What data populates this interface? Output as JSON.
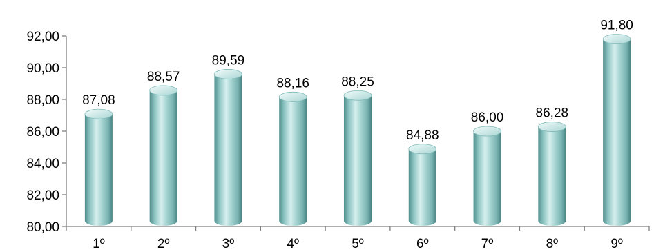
{
  "chart_data": {
    "type": "bar",
    "categories": [
      "1º",
      "2º",
      "3º",
      "4º",
      "5º",
      "6º",
      "7º",
      "8º",
      "9º"
    ],
    "values": [
      87.08,
      88.57,
      89.59,
      88.16,
      88.25,
      84.88,
      86.0,
      86.28,
      91.8
    ],
    "value_labels": [
      "87,08",
      "88,57",
      "89,59",
      "88,16",
      "88,25",
      "84,88",
      "86,00",
      "86,28",
      "91,80"
    ],
    "y_ticks": [
      80,
      82,
      84,
      86,
      88,
      90,
      92
    ],
    "y_tick_labels": [
      "80,00",
      "82,00",
      "84,00",
      "86,00",
      "88,00",
      "90,00",
      "92,00"
    ],
    "ylim": [
      80,
      92
    ],
    "title": "",
    "xlabel": "",
    "ylabel": "",
    "grid": false,
    "legend": "none",
    "bar_style": "cylinder",
    "colors": {
      "bar": "#8fc7c5",
      "bar_dark": "#5a9997",
      "bar_light": "#d9f0ef",
      "axis": "#7f7f7f",
      "text": "#000000"
    }
  }
}
